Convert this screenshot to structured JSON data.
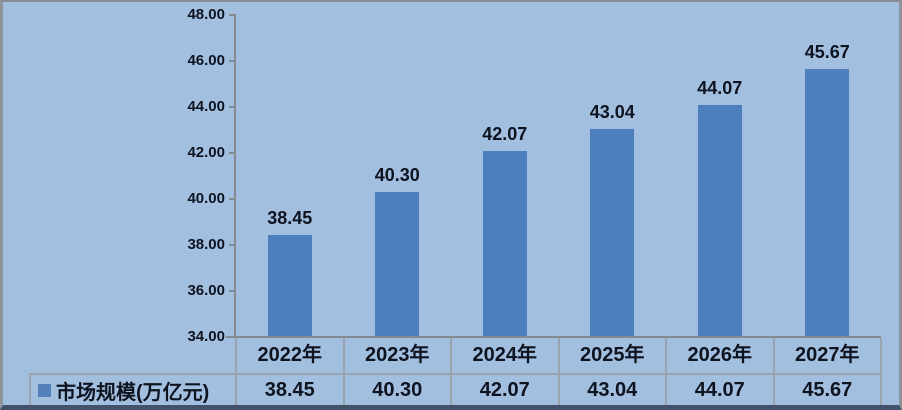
{
  "chart_data": {
    "type": "bar",
    "categories": [
      "2022年",
      "2023年",
      "2024年",
      "2025年",
      "2026年",
      "2027年"
    ],
    "values": [
      38.45,
      40.3,
      42.07,
      43.04,
      44.07,
      45.67
    ],
    "value_labels": [
      "38.45",
      "40.30",
      "42.07",
      "43.04",
      "44.07",
      "45.67"
    ],
    "series_name": "市场规模(万亿元)",
    "title": "",
    "xlabel": "",
    "ylabel": "",
    "y_ticks": [
      "48.00",
      "46.00",
      "44.00",
      "42.00",
      "40.00",
      "38.00",
      "36.00",
      "34.00"
    ],
    "ylim": [
      34,
      48
    ],
    "grid": false,
    "legend_position": "bottom-left-of-data-table",
    "colors": {
      "background": "#a3bfdf",
      "bar": "#4d7ebd",
      "legend_swatch": "#547fb8",
      "text": "#0e1320",
      "axis_line": "#848a92",
      "table_divider": "#9aa4b1",
      "border_bottom": "#42526a"
    }
  }
}
